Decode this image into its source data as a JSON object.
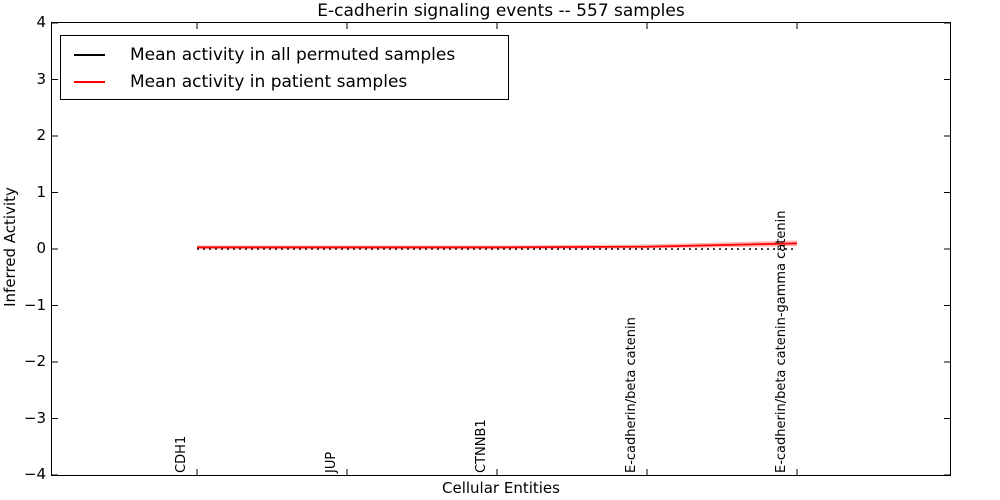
{
  "title": "E-cadherin signaling events -- 557 samples",
  "chart_data": {
    "type": "line",
    "title": "E-cadherin signaling events -- 557 samples",
    "xlabel": "Cellular Entities",
    "ylabel": "Inferred Activity",
    "ylim": [
      -4,
      4
    ],
    "ytick_labels": [
      "4",
      "3",
      "2",
      "1",
      "0",
      "−1",
      "−2",
      "−3",
      "−4"
    ],
    "ytick_values": [
      4,
      3,
      2,
      1,
      0,
      -1,
      -2,
      -3,
      -4
    ],
    "categories": [
      "CDH1",
      "JUP",
      "CTNNB1",
      "E-cadherin/beta catenin",
      "E-cadherin/beta catenin-gamma catenin"
    ],
    "grid": false,
    "legend_position": "upper left",
    "series": [
      {
        "name": "Mean activity in all permuted samples",
        "color": "#000000",
        "style": "dotted",
        "values": [
          0.0,
          0.0,
          0.0,
          0.0,
          0.0
        ]
      },
      {
        "name": "Mean activity in patient samples",
        "color": "#ff0000",
        "style": "solid",
        "values": [
          0.03,
          0.03,
          0.03,
          0.04,
          0.1
        ],
        "band_upper": [
          0.06,
          0.06,
          0.06,
          0.08,
          0.15
        ],
        "band_lower": [
          0.0,
          0.0,
          0.0,
          0.01,
          0.05
        ],
        "band_color": "rgba(255,0,0,0.3)"
      }
    ]
  }
}
